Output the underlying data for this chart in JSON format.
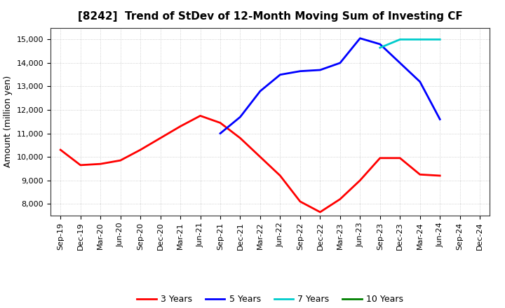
{
  "title": "[8242]  Trend of StDev of 12-Month Moving Sum of Investing CF",
  "ylabel": "Amount (million yen)",
  "background_color": "#ffffff",
  "plot_bg_color": "#ffffff",
  "grid_color": "#bbbbbb",
  "ylim": [
    7500,
    15500
  ],
  "yticks": [
    8000,
    9000,
    10000,
    11000,
    12000,
    13000,
    14000,
    15000
  ],
  "series": {
    "3years": {
      "color": "#ff0000",
      "label": "3 Years",
      "data": [
        [
          "Sep-19",
          10300
        ],
        [
          "Dec-19",
          9650
        ],
        [
          "Mar-20",
          9700
        ],
        [
          "Jun-20",
          9850
        ],
        [
          "Sep-20",
          10300
        ],
        [
          "Dec-20",
          10800
        ],
        [
          "Mar-21",
          11300
        ],
        [
          "Jun-21",
          11750
        ],
        [
          "Sep-21",
          11450
        ],
        [
          "Dec-21",
          10800
        ],
        [
          "Mar-22",
          10000
        ],
        [
          "Jun-22",
          9200
        ],
        [
          "Sep-22",
          8100
        ],
        [
          "Dec-22",
          7650
        ],
        [
          "Mar-23",
          8200
        ],
        [
          "Jun-23",
          9000
        ],
        [
          "Sep-23",
          9950
        ],
        [
          "Dec-23",
          9950
        ],
        [
          "Mar-24",
          9250
        ],
        [
          "Jun-24",
          9200
        ],
        [
          "Sep-24",
          null
        ],
        [
          "Dec-24",
          null
        ]
      ]
    },
    "5years": {
      "color": "#0000ff",
      "label": "5 Years",
      "data": [
        [
          "Sep-19",
          null
        ],
        [
          "Dec-19",
          null
        ],
        [
          "Mar-20",
          null
        ],
        [
          "Jun-20",
          null
        ],
        [
          "Sep-20",
          null
        ],
        [
          "Dec-20",
          null
        ],
        [
          "Mar-21",
          null
        ],
        [
          "Jun-21",
          null
        ],
        [
          "Sep-21",
          11000
        ],
        [
          "Dec-21",
          11700
        ],
        [
          "Mar-22",
          12800
        ],
        [
          "Jun-22",
          13500
        ],
        [
          "Sep-22",
          13650
        ],
        [
          "Dec-22",
          13700
        ],
        [
          "Mar-23",
          14000
        ],
        [
          "Jun-23",
          15050
        ],
        [
          "Sep-23",
          14800
        ],
        [
          "Dec-23",
          14000
        ],
        [
          "Mar-24",
          13200
        ],
        [
          "Jun-24",
          11600
        ],
        [
          "Sep-24",
          null
        ],
        [
          "Dec-24",
          null
        ]
      ]
    },
    "7years": {
      "color": "#00cccc",
      "label": "7 Years",
      "data": [
        [
          "Sep-19",
          null
        ],
        [
          "Dec-19",
          null
        ],
        [
          "Mar-20",
          null
        ],
        [
          "Jun-20",
          null
        ],
        [
          "Sep-20",
          null
        ],
        [
          "Dec-20",
          null
        ],
        [
          "Mar-21",
          null
        ],
        [
          "Jun-21",
          null
        ],
        [
          "Sep-21",
          null
        ],
        [
          "Dec-21",
          null
        ],
        [
          "Mar-22",
          null
        ],
        [
          "Jun-22",
          null
        ],
        [
          "Sep-22",
          null
        ],
        [
          "Dec-22",
          null
        ],
        [
          "Mar-23",
          null
        ],
        [
          "Jun-23",
          null
        ],
        [
          "Sep-23",
          14650
        ],
        [
          "Dec-23",
          15000
        ],
        [
          "Mar-24",
          15000
        ],
        [
          "Jun-24",
          15000
        ],
        [
          "Sep-24",
          null
        ],
        [
          "Dec-24",
          null
        ]
      ]
    },
    "10years": {
      "color": "#008000",
      "label": "10 Years",
      "data": [
        [
          "Sep-19",
          null
        ],
        [
          "Dec-19",
          null
        ],
        [
          "Mar-20",
          null
        ],
        [
          "Jun-20",
          null
        ],
        [
          "Sep-20",
          null
        ],
        [
          "Dec-20",
          null
        ],
        [
          "Mar-21",
          null
        ],
        [
          "Jun-21",
          null
        ],
        [
          "Sep-21",
          null
        ],
        [
          "Dec-21",
          null
        ],
        [
          "Mar-22",
          null
        ],
        [
          "Jun-22",
          null
        ],
        [
          "Sep-22",
          null
        ],
        [
          "Dec-22",
          null
        ],
        [
          "Mar-23",
          null
        ],
        [
          "Jun-23",
          null
        ],
        [
          "Sep-23",
          null
        ],
        [
          "Dec-23",
          null
        ],
        [
          "Mar-24",
          null
        ],
        [
          "Jun-24",
          null
        ],
        [
          "Sep-24",
          null
        ],
        [
          "Dec-24",
          null
        ]
      ]
    }
  },
  "xtick_labels": [
    "Sep-19",
    "Dec-19",
    "Mar-20",
    "Jun-20",
    "Sep-20",
    "Dec-20",
    "Mar-21",
    "Jun-21",
    "Sep-21",
    "Dec-21",
    "Mar-22",
    "Jun-22",
    "Sep-22",
    "Dec-22",
    "Mar-23",
    "Jun-23",
    "Sep-23",
    "Dec-23",
    "Mar-24",
    "Jun-24",
    "Sep-24",
    "Dec-24"
  ],
  "legend_order": [
    "3years",
    "5years",
    "7years",
    "10years"
  ],
  "linewidth": 2.0,
  "title_fontsize": 11,
  "tick_fontsize": 8,
  "ylabel_fontsize": 9
}
